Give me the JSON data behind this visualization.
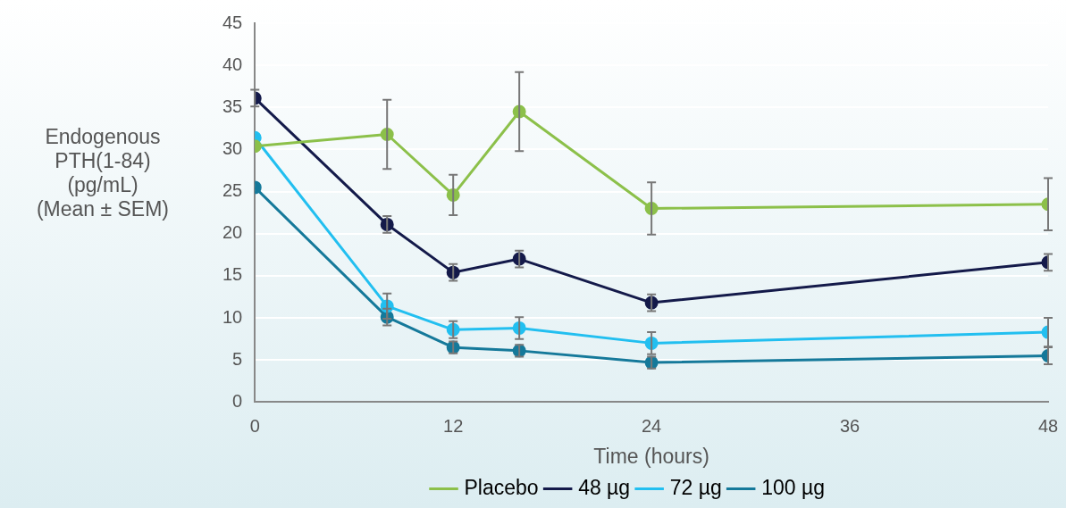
{
  "chart_data": {
    "type": "line",
    "xlabel": "Time (hours)",
    "ylabel": "Endogenous PTH(1-84) (pg/mL) (Mean ± SEM)",
    "xlim": [
      0,
      48
    ],
    "xticks": [
      0,
      12,
      24,
      36,
      48
    ],
    "ylim": [
      0,
      45
    ],
    "yticks": [
      0,
      5,
      10,
      15,
      20,
      25,
      30,
      35,
      40,
      45
    ],
    "grid": "y",
    "legend": "bottom",
    "marker": "circle",
    "line_style": "solid",
    "x": [
      0,
      8,
      12,
      16,
      24,
      48
    ],
    "series": [
      {
        "name": "Placebo",
        "color": "#8cc04a",
        "values": [
          30.4,
          31.8,
          24.6,
          34.5,
          23.0,
          23.5
        ],
        "errors": [
          null,
          4.1,
          2.4,
          4.7,
          3.1,
          3.1
        ]
      },
      {
        "name": "48 µg",
        "color": "#141a4a",
        "values": [
          36.1,
          21.1,
          15.4,
          17.0,
          11.8,
          16.6
        ],
        "errors": [
          1.0,
          1.0,
          1.0,
          1.0,
          1.0,
          1.0
        ]
      },
      {
        "name": "72 µg",
        "color": "#22bff0",
        "values": [
          31.4,
          11.4,
          8.6,
          8.8,
          7.0,
          8.3
        ],
        "errors": [
          null,
          1.5,
          1.0,
          1.3,
          1.3,
          1.7
        ]
      },
      {
        "name": "100 µg",
        "color": "#15799a",
        "values": [
          25.5,
          10.1,
          6.5,
          6.1,
          4.7,
          5.5
        ],
        "errors": [
          null,
          1.0,
          0.7,
          0.7,
          0.7,
          1.0
        ]
      }
    ]
  }
}
